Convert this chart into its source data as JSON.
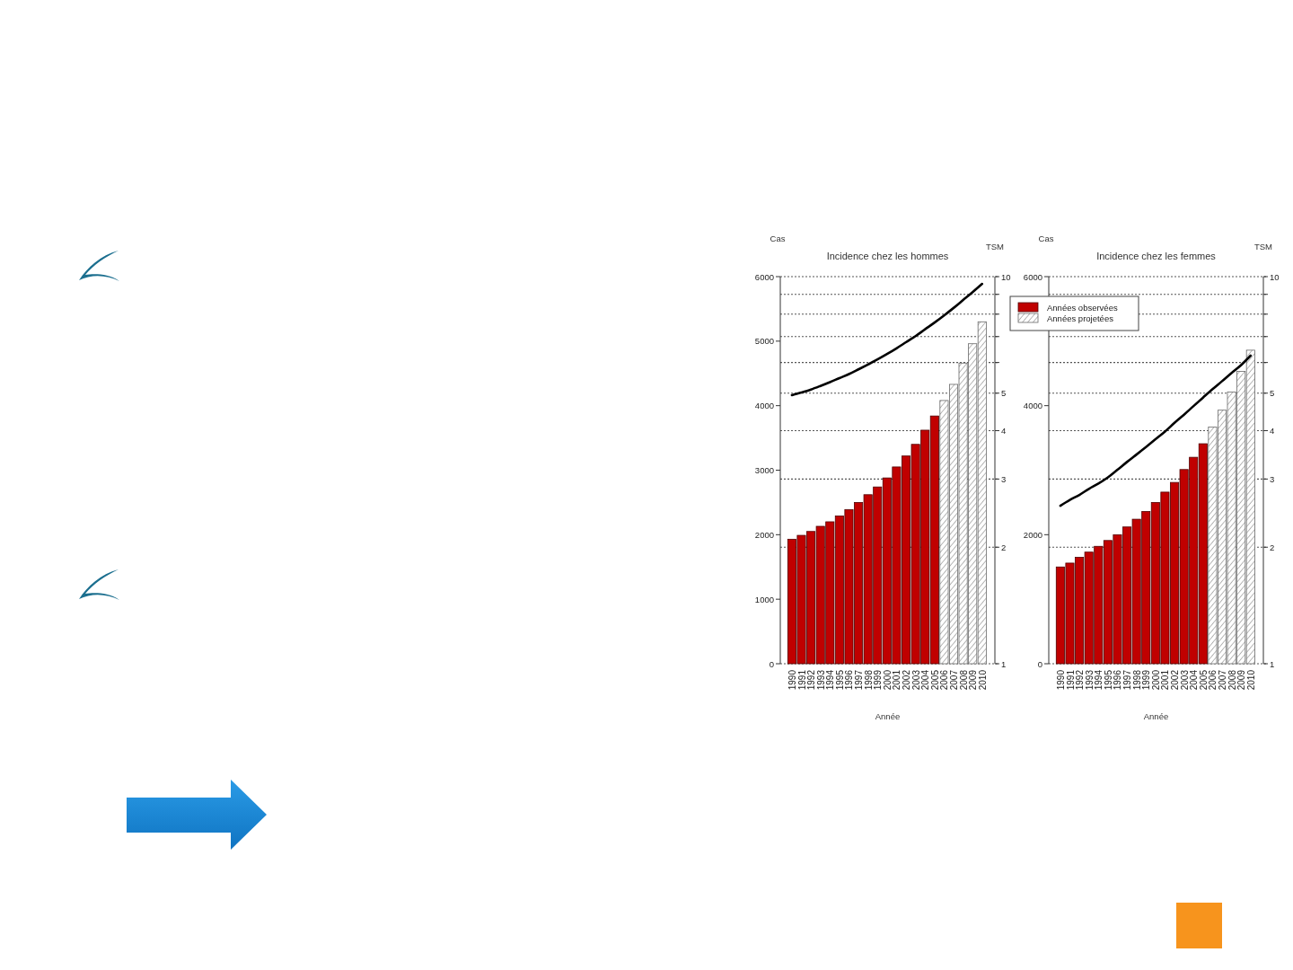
{
  "chart_data": [
    {
      "type": "bar",
      "title": "Incidence chez les hommes",
      "xlabel": "Année",
      "ylabel": "Cas",
      "y2label": "TSM",
      "categories": [
        "1990",
        "1991",
        "1992",
        "1993",
        "1994",
        "1995",
        "1996",
        "1997",
        "1998",
        "1999",
        "2000",
        "2001",
        "2002",
        "2003",
        "2004",
        "2005",
        "2006",
        "2007",
        "2008",
        "2009",
        "2010"
      ],
      "stacked": true,
      "series": [
        {
          "color": "#c00000",
          "values": [
            1930,
            1990,
            2050,
            2130,
            2200,
            2290,
            2390,
            2500,
            2620,
            2740,
            2880,
            3050,
            3220,
            3400,
            3620,
            3840,
            null,
            null,
            null,
            null,
            null
          ]
        },
        {
          "color": "#696969",
          "values": [
            null,
            null,
            null,
            null,
            null,
            null,
            null,
            null,
            null,
            null,
            null,
            null,
            null,
            null,
            null,
            null,
            4080,
            4330,
            4660,
            4960,
            5300
          ]
        },
        {
          "type": "line",
          "axis": "y2",
          "color": "#000000",
          "values": [
            4.94,
            5.02,
            5.11,
            5.22,
            5.34,
            5.47,
            5.6,
            5.76,
            5.93,
            6.11,
            6.31,
            6.53,
            6.77,
            7.02,
            7.31,
            7.61,
            7.94,
            8.3,
            8.7,
            9.12,
            9.58
          ]
        }
      ],
      "ylim": [
        0,
        6000
      ],
      "yticks": [
        0,
        1000,
        2000,
        3000,
        4000,
        5000,
        6000
      ],
      "y2lim": [
        1,
        10
      ],
      "y2ticks": [
        1,
        2,
        3,
        4,
        5,
        {
          "value": 6,
          "label": null
        },
        {
          "value": 7,
          "label": null
        },
        {
          "value": 8,
          "label": null
        },
        {
          "value": 9,
          "label": null
        },
        10
      ],
      "log": "y2",
      "grid": "y"
    },
    {
      "type": "bar",
      "title": "Incidence chez les femmes",
      "xlabel": "Année",
      "ylabel": "Cas",
      "y2label": "TSM",
      "categories": [
        "1990",
        "1991",
        "1992",
        "1993",
        "1994",
        "1995",
        "1996",
        "1997",
        "1998",
        "1999",
        "2000",
        "2001",
        "2002",
        "2003",
        "2004",
        "2005",
        "2006",
        "2007",
        "2008",
        "2009",
        "2010"
      ],
      "stacked": true,
      "series": [
        {
          "name": "Années observées",
          "color": "#c00000",
          "values": [
            1500,
            1560,
            1650,
            1730,
            1820,
            1910,
            2000,
            2120,
            2240,
            2360,
            2500,
            2660,
            2810,
            3010,
            3200,
            3410,
            null,
            null,
            null,
            null,
            null
          ]
        },
        {
          "name": "Années projetées",
          "color": "#696969",
          "values": [
            null,
            null,
            null,
            null,
            null,
            null,
            null,
            null,
            null,
            null,
            null,
            null,
            null,
            null,
            null,
            null,
            3670,
            3930,
            4210,
            4530,
            4860
          ]
        },
        {
          "type": "line",
          "axis": "y2",
          "color": "#000000",
          "values": [
            2.56,
            2.65,
            2.73,
            2.83,
            2.92,
            3.03,
            3.17,
            3.32,
            3.47,
            3.63,
            3.8,
            3.98,
            4.19,
            4.4,
            4.63,
            4.87,
            5.12,
            5.37,
            5.64,
            5.91,
            6.25
          ]
        }
      ],
      "ylim": [
        0,
        6000
      ],
      "yticks": [
        0,
        2000,
        4000,
        6000
      ],
      "y2lim": [
        1,
        10
      ],
      "y2ticks": [
        1,
        2,
        3,
        4,
        5,
        {
          "value": 6,
          "label": null
        },
        {
          "value": 7,
          "label": null
        },
        {
          "value": 8,
          "label": null
        },
        {
          "value": 9,
          "label": null
        },
        10
      ],
      "log": "y2",
      "grid": "y",
      "legend": "top left"
    }
  ]
}
